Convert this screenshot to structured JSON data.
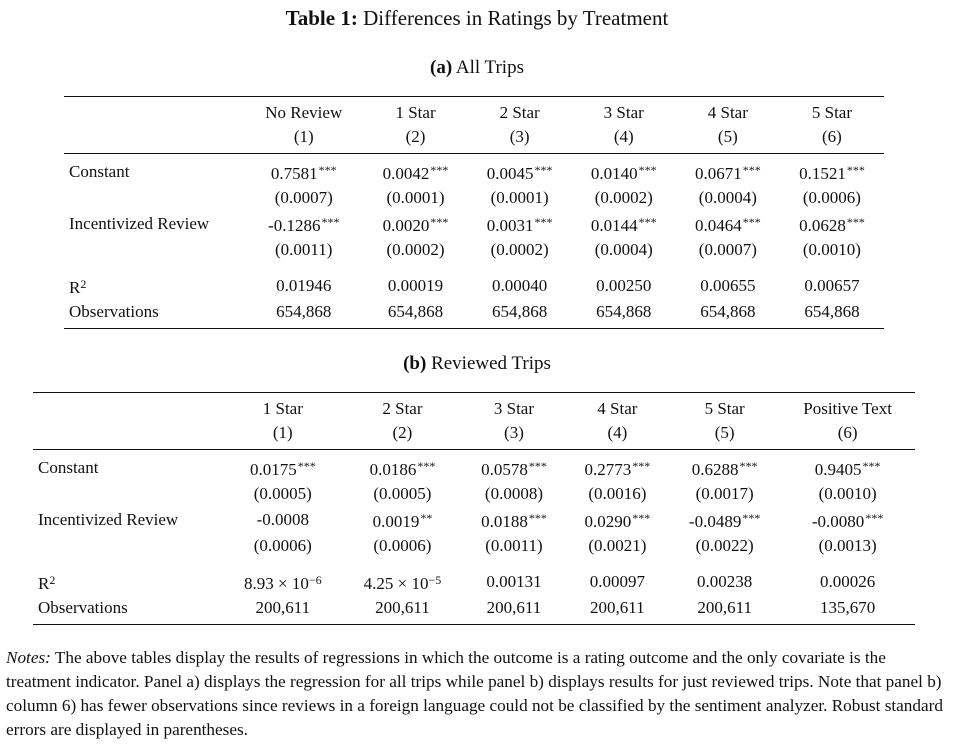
{
  "caption": {
    "label": "Table 1:",
    "text": "Differences in Ratings by Treatment"
  },
  "panel_a": {
    "label": "(a)",
    "title": "All Trips",
    "headers": [
      "No Review",
      "1 Star",
      "2 Star",
      "3 Star",
      "4 Star",
      "5 Star"
    ],
    "numbers": [
      "(1)",
      "(2)",
      "(3)",
      "(4)",
      "(5)",
      "(6)"
    ],
    "rows": [
      {
        "label": "Constant",
        "coef": [
          "0.7581",
          "0.0042",
          "0.0045",
          "0.0140",
          "0.0671",
          "0.1521"
        ],
        "stars": [
          "***",
          "***",
          "***",
          "***",
          "***",
          "***"
        ],
        "se": [
          "(0.0007)",
          "(0.0001)",
          "(0.0001)",
          "(0.0002)",
          "(0.0004)",
          "(0.0006)"
        ]
      },
      {
        "label": "Incentivized Review",
        "coef": [
          "-0.1286",
          "0.0020",
          "0.0031",
          "0.0144",
          "0.0464",
          "0.0628"
        ],
        "stars": [
          "***",
          "***",
          "***",
          "***",
          "***",
          "***"
        ],
        "se": [
          "(0.0011)",
          "(0.0002)",
          "(0.0002)",
          "(0.0004)",
          "(0.0007)",
          "(0.0010)"
        ]
      }
    ],
    "r2": {
      "label": "R",
      "exp": "2",
      "values": [
        "0.01946",
        "0.00019",
        "0.00040",
        "0.00250",
        "0.00655",
        "0.00657"
      ]
    },
    "obs": {
      "label": "Observations",
      "values": [
        "654,868",
        "654,868",
        "654,868",
        "654,868",
        "654,868",
        "654,868"
      ]
    }
  },
  "panel_b": {
    "label": "(b)",
    "title": "Reviewed Trips",
    "headers": [
      "1 Star",
      "2 Star",
      "3 Star",
      "4 Star",
      "5 Star",
      "Positive Text"
    ],
    "numbers": [
      "(1)",
      "(2)",
      "(3)",
      "(4)",
      "(5)",
      "(6)"
    ],
    "rows": [
      {
        "label": "Constant",
        "coef": [
          "0.0175",
          "0.0186",
          "0.0578",
          "0.2773",
          "0.6288",
          "0.9405"
        ],
        "stars": [
          "***",
          "***",
          "***",
          "***",
          "***",
          "***"
        ],
        "se": [
          "(0.0005)",
          "(0.0005)",
          "(0.0008)",
          "(0.0016)",
          "(0.0017)",
          "(0.0010)"
        ]
      },
      {
        "label": "Incentivized Review",
        "coef": [
          "-0.0008",
          "0.0019",
          "0.0188",
          "0.0290",
          "-0.0489",
          "-0.0080"
        ],
        "stars": [
          "",
          "**",
          "***",
          "***",
          "***",
          "***"
        ],
        "se": [
          "(0.0006)",
          "(0.0006)",
          "(0.0011)",
          "(0.0021)",
          "(0.0022)",
          "(0.0013)"
        ]
      }
    ],
    "r2": {
      "label": "R",
      "exp": "2",
      "values": [
        {
          "base": "8.93 × 10",
          "exp": "−6"
        },
        {
          "base": "4.25 × 10",
          "exp": "−5"
        },
        {
          "base": "0.00131",
          "exp": ""
        },
        {
          "base": "0.00097",
          "exp": ""
        },
        {
          "base": "0.00238",
          "exp": ""
        },
        {
          "base": "0.00026",
          "exp": ""
        }
      ]
    },
    "obs": {
      "label": "Observations",
      "values": [
        "200,611",
        "200,611",
        "200,611",
        "200,611",
        "200,611",
        "135,670"
      ]
    }
  },
  "notes": {
    "label": "Notes:",
    "text": "The above tables display the results of regressions in which the outcome is a rating outcome and the only covariate is the treatment indicator. Panel a) displays the regression for all trips while panel b) displays results for just reviewed trips. Note that panel b) column 6) has fewer observations since reviews in a foreign language could not be classified by the sentiment analyzer. Robust standard errors are displayed in parentheses."
  }
}
